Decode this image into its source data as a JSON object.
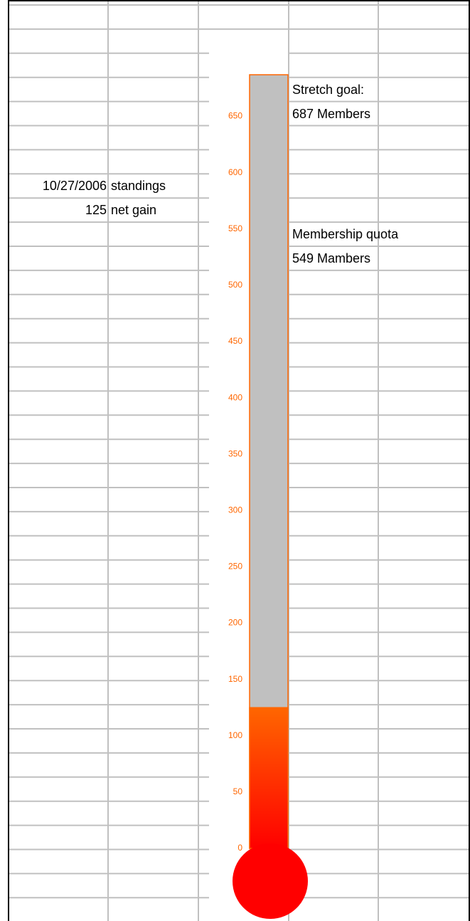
{
  "chart_data": {
    "type": "bar",
    "values": [
      125
    ],
    "target": 687,
    "color": "#ff6600",
    "bulb_color": "#ff0000",
    "target_color": "#c0c0c0",
    "ylim": [
      0,
      687
    ],
    "yticks": [
      0,
      50,
      100,
      150,
      200,
      250,
      300,
      350,
      400,
      450,
      500,
      550,
      600,
      650
    ]
  },
  "cells": {
    "date": "10/27/2006",
    "standings": "standings",
    "gain": "125",
    "gain_label": "net gain",
    "stretch_label": "Stretch goal:",
    "stretch_value": "687 Members",
    "quota_label": "Membership quota",
    "quota_value": "549 Mambers"
  }
}
